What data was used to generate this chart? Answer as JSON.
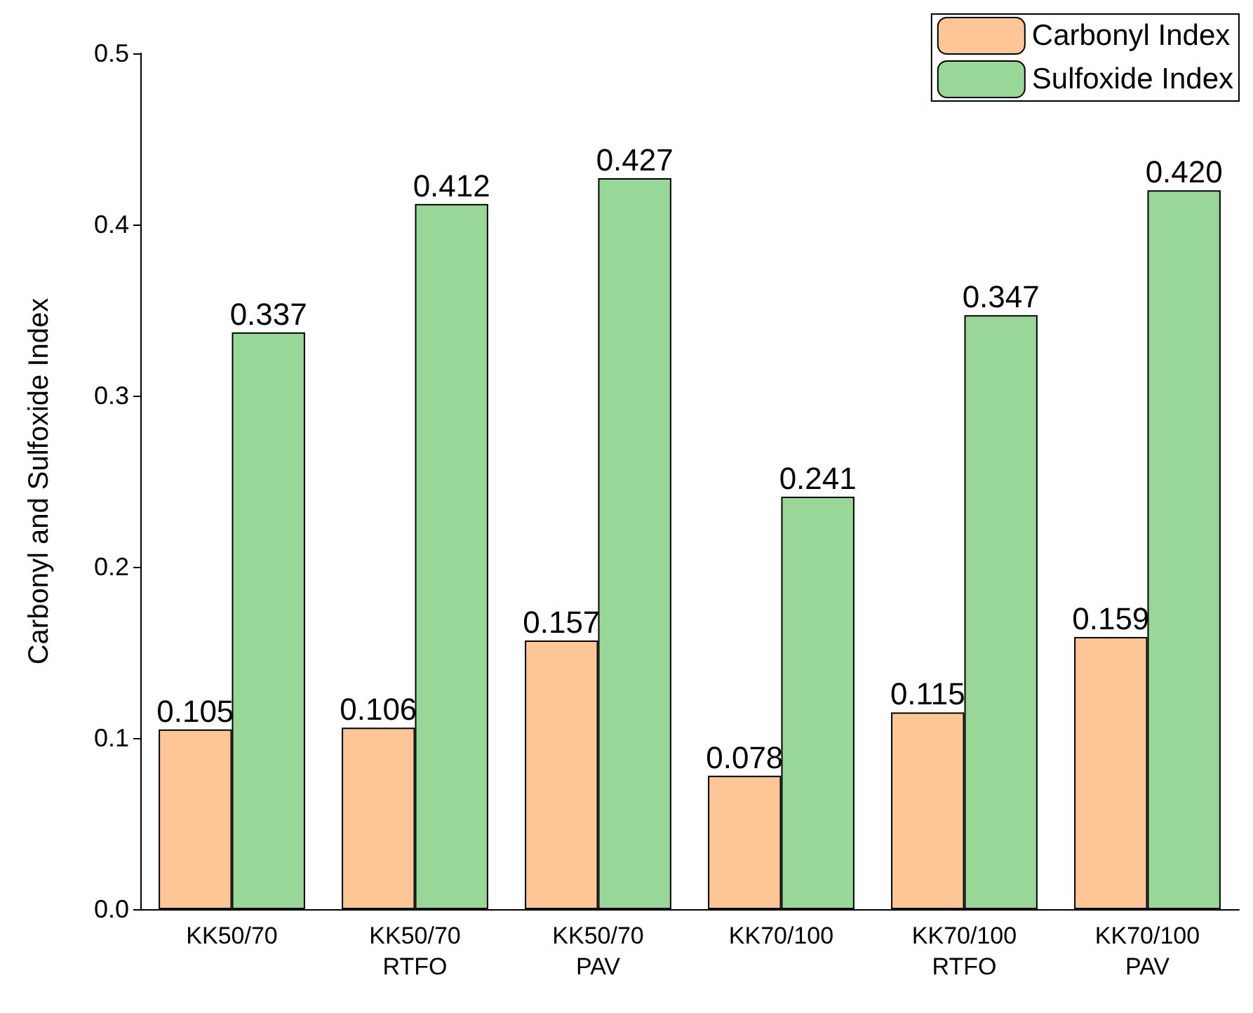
{
  "chart_data": {
    "type": "bar",
    "categories": [
      "KK50/70",
      "KK50/70\nRTFO",
      "KK50/70\nPAV",
      "KK70/100",
      "KK70/100\nRTFO",
      "KK70/100\nPAV"
    ],
    "series": [
      {
        "name": "Carbonyl Index",
        "color": "#fcc697",
        "values": [
          0.105,
          0.106,
          0.157,
          0.078,
          0.115,
          0.159
        ],
        "value_labels": [
          "0.105",
          "0.106",
          "0.157",
          "0.078",
          "0.115",
          "0.159"
        ]
      },
      {
        "name": "Sulfoxide Index",
        "color": "#99d798",
        "values": [
          0.337,
          0.412,
          0.427,
          0.241,
          0.347,
          0.42
        ],
        "value_labels": [
          "0.337",
          "0.412",
          "0.427",
          "0.241",
          "0.347",
          "0.420"
        ]
      }
    ],
    "ylabel": "Carbonyl and Sulfoxide Index",
    "ylim": [
      0,
      0.5
    ],
    "yticks": [
      {
        "value": 0,
        "label": "0.0"
      },
      0.1,
      0.2,
      0.3,
      0.4,
      0.5
    ],
    "grid": false,
    "legend": "top right"
  }
}
